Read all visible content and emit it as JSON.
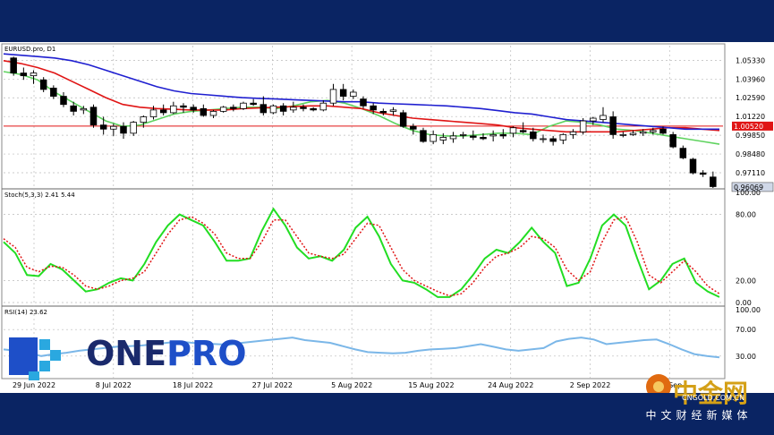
{
  "chart_data": [
    {
      "type": "candlestick",
      "title": "EURUSD.pro, D1",
      "ylim": [
        0.96,
        1.064
      ],
      "yticks": [
        "1.05330",
        "1.03960",
        "1.02590",
        "1.01220",
        "0.99850",
        "0.98480",
        "0.97110"
      ],
      "ytick_values": [
        1.0533,
        1.0396,
        1.0259,
        1.0122,
        0.9985,
        0.9848,
        0.9711
      ],
      "hline_value": 1.0052,
      "hline_label": "1.00520",
      "last_price_label": "0.96069",
      "last_price": 0.9607,
      "colors": {
        "bull": "#ffffff",
        "bear": "#000000",
        "ma_blue": "#1f1fd0",
        "ma_red": "#e01515",
        "ma_green": "#5fd35f",
        "hline": "#e01515"
      },
      "candles": [
        [
          1.055,
          1.056,
          1.042,
          1.044
        ],
        [
          1.044,
          1.048,
          1.039,
          1.042
        ],
        [
          1.042,
          1.046,
          1.036,
          1.044
        ],
        [
          1.039,
          1.041,
          1.03,
          1.032
        ],
        [
          1.033,
          1.035,
          1.025,
          1.027
        ],
        [
          1.027,
          1.03,
          1.019,
          1.021
        ],
        [
          1.02,
          1.023,
          1.013,
          1.016
        ],
        [
          1.017,
          1.02,
          1.014,
          1.018
        ],
        [
          1.019,
          1.021,
          1.004,
          1.006
        ],
        [
          1.006,
          1.012,
          0.999,
          1.003
        ],
        [
          1.003,
          1.007,
          0.998,
          1.005
        ],
        [
          1.005,
          1.008,
          0.996,
          1.0
        ],
        [
          1.0,
          1.009,
          0.998,
          1.008
        ],
        [
          1.008,
          1.013,
          1.004,
          1.012
        ],
        [
          1.012,
          1.02,
          1.01,
          1.017
        ],
        [
          1.017,
          1.021,
          1.013,
          1.015
        ],
        [
          1.015,
          1.023,
          1.014,
          1.02
        ],
        [
          1.02,
          1.022,
          1.015,
          1.019
        ],
        [
          1.019,
          1.021,
          1.015,
          1.017
        ],
        [
          1.018,
          1.021,
          1.012,
          1.013
        ],
        [
          1.013,
          1.017,
          1.011,
          1.016
        ],
        [
          1.016,
          1.02,
          1.015,
          1.019
        ],
        [
          1.019,
          1.021,
          1.016,
          1.018
        ],
        [
          1.018,
          1.023,
          1.017,
          1.022
        ],
        [
          1.022,
          1.025,
          1.02,
          1.021
        ],
        [
          1.021,
          1.027,
          1.013,
          1.015
        ],
        [
          1.015,
          1.021,
          1.014,
          1.02
        ],
        [
          1.02,
          1.022,
          1.013,
          1.016
        ],
        [
          1.017,
          1.023,
          1.015,
          1.019
        ],
        [
          1.019,
          1.021,
          1.016,
          1.018
        ],
        [
          1.018,
          1.019,
          1.016,
          1.017
        ],
        [
          1.017,
          1.024,
          1.016,
          1.022
        ],
        [
          1.022,
          1.036,
          1.02,
          1.032
        ],
        [
          1.032,
          1.036,
          1.024,
          1.027
        ],
        [
          1.027,
          1.032,
          1.025,
          1.03
        ],
        [
          1.025,
          1.027,
          1.018,
          1.02
        ],
        [
          1.02,
          1.022,
          1.014,
          1.017
        ],
        [
          1.016,
          1.018,
          1.013,
          1.015
        ],
        [
          1.016,
          1.019,
          1.013,
          1.017
        ],
        [
          1.015,
          1.017,
          1.004,
          1.005
        ],
        [
          1.005,
          1.007,
          0.999,
          1.003
        ],
        [
          1.002,
          1.004,
          0.993,
          0.994
        ],
        [
          0.994,
          1.002,
          0.992,
          0.999
        ],
        [
          0.995,
          1.0,
          0.992,
          0.997
        ],
        [
          0.996,
          1.001,
          0.993,
          0.998
        ],
        [
          0.999,
          1.001,
          0.996,
          0.999
        ],
        [
          0.998,
          1.002,
          0.995,
          0.997
        ],
        [
          0.997,
          1.0,
          0.995,
          0.996
        ],
        [
          0.998,
          1.002,
          0.994,
          0.999
        ],
        [
          0.999,
          1.003,
          0.996,
          0.998
        ],
        [
          1.0,
          1.005,
          0.997,
          1.004
        ],
        [
          1.002,
          1.008,
          1.0,
          1.001
        ],
        [
          1.001,
          1.004,
          0.994,
          0.996
        ],
        [
          0.996,
          0.999,
          0.993,
          0.996
        ],
        [
          0.996,
          0.998,
          0.991,
          0.994
        ],
        [
          0.995,
          1.0,
          0.992,
          0.999
        ],
        [
          0.999,
          1.003,
          0.996,
          1.001
        ],
        [
          1.001,
          1.011,
          0.999,
          1.009
        ],
        [
          1.009,
          1.012,
          1.006,
          1.011
        ],
        [
          1.01,
          1.019,
          1.008,
          1.013
        ],
        [
          1.012,
          1.016,
          0.996,
          0.999
        ],
        [
          0.999,
          1.001,
          0.997,
          0.999
        ],
        [
          0.999,
          1.002,
          0.998,
          1.0
        ],
        [
          1.0,
          1.003,
          0.998,
          1.001
        ],
        [
          1.001,
          1.004,
          0.999,
          1.002
        ],
        [
          1.003,
          1.005,
          0.999,
          1.0
        ],
        [
          0.999,
          1.001,
          0.989,
          0.99
        ],
        [
          0.989,
          0.991,
          0.981,
          0.982
        ],
        [
          0.981,
          0.982,
          0.97,
          0.971
        ],
        [
          0.971,
          0.973,
          0.968,
          0.97
        ],
        [
          0.968,
          0.972,
          0.96,
          0.961
        ]
      ],
      "ma_blue": [
        1.058,
        1.057,
        1.056,
        1.055,
        1.053,
        1.05,
        1.046,
        1.042,
        1.038,
        1.034,
        1.031,
        1.029,
        1.028,
        1.027,
        1.026,
        1.0255,
        1.025,
        1.0245,
        1.024,
        1.0235,
        1.023,
        1.023,
        1.022,
        1.0215,
        1.021,
        1.0205,
        1.02,
        1.019,
        1.018,
        1.0165,
        1.015,
        1.014,
        1.012,
        1.01,
        1.009,
        1.008,
        1.007,
        1.006,
        1.005,
        1.004,
        1.003,
        1.003,
        1.003
      ],
      "ma_red": [
        1.053,
        1.051,
        1.048,
        1.044,
        1.038,
        1.032,
        1.026,
        1.021,
        1.019,
        1.018,
        1.0175,
        1.017,
        1.017,
        1.017,
        1.018,
        1.0185,
        1.019,
        1.0195,
        1.02,
        1.02,
        1.019,
        1.018,
        1.015,
        1.013,
        1.011,
        1.01,
        1.009,
        1.008,
        1.007,
        1.006,
        1.004,
        1.003,
        1.002,
        1.001,
        1.001,
        1.001,
        1.001,
        1.002,
        1.003,
        1.004,
        1.004,
        1.003,
        1.002
      ],
      "ma_green": [
        1.045,
        1.043,
        1.039,
        1.03,
        1.023,
        1.016,
        1.009,
        1.005,
        1.006,
        1.01,
        1.014,
        1.016,
        1.017,
        1.018,
        1.019,
        1.019,
        1.018,
        1.02,
        1.023,
        1.024,
        1.022,
        1.018,
        1.013,
        1.007,
        1.002,
        0.999,
        0.998,
        0.998,
        0.999,
        1.0,
        1.0,
        0.999,
        1.005,
        1.009,
        1.008,
        1.006,
        1.003,
        1.002,
        1.0,
        0.998,
        0.996,
        0.994,
        0.992
      ]
    },
    {
      "type": "line",
      "title": "Stoch(5,3,3) 2.41 5.44",
      "ylim": [
        0,
        100
      ],
      "yticks": [
        "100.00",
        "80.00",
        "20.00",
        "0.00"
      ],
      "ytick_values": [
        100,
        80,
        20,
        0
      ],
      "series": [
        {
          "color": "#22dd22",
          "values": [
            55,
            45,
            25,
            24,
            35,
            30,
            20,
            10,
            12,
            18,
            22,
            20,
            35,
            55,
            70,
            80,
            75,
            70,
            55,
            38,
            38,
            40,
            65,
            85,
            70,
            50,
            40,
            42,
            38,
            48,
            68,
            78,
            60,
            35,
            20,
            18,
            12,
            5,
            5,
            12,
            25,
            40,
            48,
            45,
            55,
            68,
            55,
            45,
            15,
            18,
            40,
            70,
            80,
            70,
            40,
            12,
            20,
            35,
            40,
            18,
            10,
            5
          ]
        },
        {
          "color": "#e01515",
          "dash": true,
          "values": [
            58,
            50,
            32,
            28,
            33,
            32,
            25,
            15,
            12,
            15,
            20,
            22,
            28,
            45,
            62,
            75,
            78,
            72,
            62,
            45,
            40,
            40,
            55,
            75,
            75,
            60,
            45,
            42,
            40,
            44,
            58,
            72,
            70,
            50,
            30,
            20,
            15,
            10,
            6,
            8,
            18,
            32,
            42,
            45,
            50,
            60,
            58,
            50,
            30,
            20,
            28,
            55,
            75,
            78,
            55,
            25,
            18,
            28,
            38,
            28,
            15,
            8
          ]
        }
      ]
    },
    {
      "type": "line",
      "title": "RSI(14) 23.62",
      "ylim": [
        0,
        100
      ],
      "yticks": [
        "100.00",
        "70.00",
        "30.00"
      ],
      "ytick_values": [
        100,
        70,
        30
      ],
      "series": [
        {
          "color": "#7bb7e8",
          "values": [
            40,
            38,
            35,
            30,
            33,
            35,
            38,
            40,
            42,
            44,
            45,
            46,
            48,
            50,
            52,
            50,
            49,
            48,
            47,
            50,
            52,
            54,
            56,
            58,
            54,
            52,
            50,
            45,
            40,
            36,
            35,
            34,
            35,
            38,
            40,
            41,
            42,
            45,
            48,
            44,
            40,
            38,
            40,
            42,
            52,
            56,
            58,
            55,
            48,
            50,
            52,
            54,
            55,
            48,
            40,
            33,
            30,
            28
          ]
        }
      ]
    }
  ],
  "x_labels": [
    "29 Jun 2022",
    "8 Jul 2022",
    "18 Jul 2022",
    "27 Jul 2022",
    "5 Aug 2022",
    "15 Aug 2022",
    "24 Aug 2022",
    "2 Sep 2022",
    "12 Sep"
  ],
  "brand": {
    "name": "ONEPRO",
    "name_one": "ONE",
    "name_pro": "PRO"
  },
  "watermark": {
    "cn_name": "中金网",
    "cn_url": "CNGOLD.COM.CN",
    "cn_tagline": "中文财经新媒体"
  }
}
